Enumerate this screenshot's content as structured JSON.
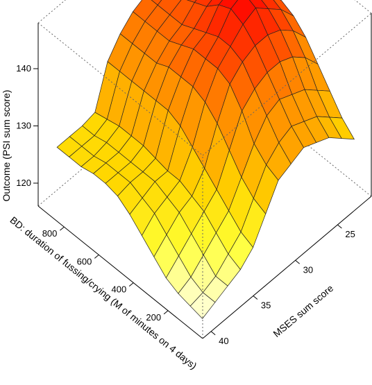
{
  "chart_data": {
    "type": "surface",
    "title": "",
    "axes": {
      "z": {
        "label": "Outcome (PSI sum score)",
        "ticks": [
          120,
          130,
          140
        ],
        "range": [
          116,
          148
        ]
      },
      "bd": {
        "label": "BD: duration of fussing/crying (M of minutes on 4 days)",
        "ticks": [
          200,
          400,
          600,
          800
        ],
        "range": [
          0,
          950
        ]
      },
      "mses": {
        "label": "MSES sum score",
        "ticks": [
          25,
          30,
          35,
          40
        ],
        "range": [
          21,
          41
        ]
      }
    },
    "surface": {
      "bd_values": [
        50,
        120,
        190,
        260,
        330,
        400,
        470,
        540,
        610,
        680,
        750,
        820,
        890
      ],
      "mses_values": [
        40,
        38.5,
        37,
        35.5,
        34,
        32.5,
        31,
        29.5,
        28,
        26.5,
        25,
        23.5,
        22
      ],
      "z": [
        [
          117,
          117.5,
          118,
          119,
          121,
          123,
          125,
          126.5,
          127,
          127,
          126.5,
          126.5,
          126.5
        ],
        [
          118,
          118,
          119,
          121,
          123,
          125,
          126,
          127,
          127,
          127,
          126.5,
          126.5,
          126.5
        ],
        [
          119,
          119,
          121,
          123,
          125,
          126,
          127,
          127,
          127,
          127,
          127,
          126.5,
          126.5
        ],
        [
          120,
          121,
          123,
          125,
          126,
          127,
          127,
          127.5,
          128,
          128,
          128,
          127.5,
          127
        ],
        [
          122,
          123,
          125,
          127,
          129,
          131,
          133,
          134,
          134,
          134,
          134,
          134,
          134
        ],
        [
          126,
          127,
          129,
          132,
          135,
          137,
          138,
          138,
          138,
          137,
          137,
          137,
          137
        ],
        [
          130,
          131,
          133,
          137,
          140,
          141,
          141,
          141,
          140,
          139,
          139,
          139,
          139
        ],
        [
          131,
          133,
          136,
          139,
          142,
          143,
          143,
          142,
          141,
          140,
          140,
          140,
          140
        ],
        [
          132,
          134,
          137,
          140,
          143,
          145,
          146,
          145,
          143,
          142,
          141,
          141,
          141
        ],
        [
          131,
          133,
          136,
          140,
          143,
          146,
          147,
          146,
          144,
          143,
          142,
          142,
          142
        ],
        [
          130,
          132,
          135,
          139,
          142,
          144,
          145,
          144,
          143,
          142,
          141,
          141,
          141
        ],
        [
          128,
          130,
          133,
          137,
          140,
          142,
          143,
          142,
          141,
          140,
          140,
          140,
          140
        ],
        [
          126,
          128,
          131,
          134,
          137,
          139,
          140,
          139,
          138,
          138,
          138,
          138,
          138
        ]
      ],
      "colormap": [
        "#ffffe0",
        "#ffff33",
        "#ffd700",
        "#ffa500",
        "#ff8c00",
        "#ff4500",
        "#ff0000"
      ]
    },
    "view": "3d-perspective, BD axis on front-left edge, MSES axis on front-right edge, Outcome axis vertical at left",
    "grid": false,
    "legend": "none"
  }
}
